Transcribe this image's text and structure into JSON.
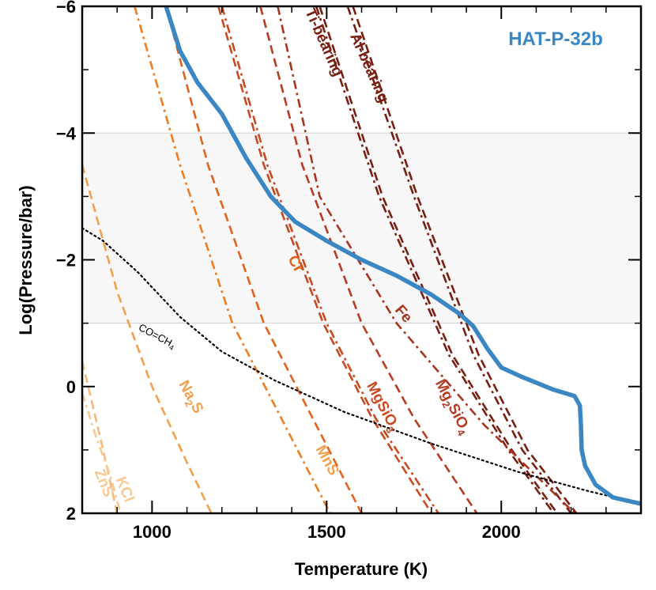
{
  "chart_data": {
    "type": "line",
    "title": "HAT-P-32b",
    "title_color": "#3b87c4",
    "xlabel": "Temperature (K)",
    "ylabel": "Log(Pressure/bar)",
    "xlim": [
      800,
      2400
    ],
    "ylim": [
      -6,
      2
    ],
    "x_ticks": [
      1000,
      1500,
      2000
    ],
    "x_tick_labels": [
      "1000",
      "1500",
      "2000"
    ],
    "y_ticks": [
      -6,
      -4,
      -2,
      0,
      2
    ],
    "y_tick_labels": [
      "−6",
      "−4",
      "−2",
      "0",
      "2"
    ],
    "grid": false,
    "shaded_band": {
      "y_from": -4.0,
      "y_to": -1.0,
      "color": "#f7f7f7"
    },
    "profile": {
      "color": "#3b87c4",
      "points": [
        [
          1040,
          -6.0
        ],
        [
          1080,
          -5.3
        ],
        [
          1130,
          -4.8
        ],
        [
          1200,
          -4.3
        ],
        [
          1270,
          -3.6
        ],
        [
          1340,
          -3.0
        ],
        [
          1410,
          -2.6
        ],
        [
          1500,
          -2.3
        ],
        [
          1600,
          -2.0
        ],
        [
          1700,
          -1.75
        ],
        [
          1800,
          -1.45
        ],
        [
          1880,
          -1.15
        ],
        [
          1920,
          -0.95
        ],
        [
          1960,
          -0.6
        ],
        [
          2000,
          -0.3
        ],
        [
          2060,
          -0.15
        ],
        [
          2150,
          0.05
        ],
        [
          2210,
          0.15
        ],
        [
          2225,
          0.3
        ],
        [
          2228,
          0.6
        ],
        [
          2230,
          1.0
        ],
        [
          2240,
          1.25
        ],
        [
          2270,
          1.55
        ],
        [
          2320,
          1.75
        ],
        [
          2400,
          1.85
        ]
      ]
    },
    "co_ch4_boundary": {
      "label": "CO=CH",
      "label_subscript": "4",
      "points": [
        [
          800,
          -2.5
        ],
        [
          860,
          -2.3
        ],
        [
          960,
          -1.8
        ],
        [
          1080,
          -1.1
        ],
        [
          1200,
          -0.55
        ],
        [
          1350,
          -0.1
        ],
        [
          1550,
          0.4
        ],
        [
          1800,
          0.9
        ],
        [
          2050,
          1.35
        ],
        [
          2250,
          1.65
        ],
        [
          2400,
          1.85
        ]
      ]
    },
    "condensation_curves": [
      {
        "name": "Ti-bearing",
        "color": "#781f12",
        "style": "dashdot",
        "points": [
          [
            1470,
            -6.0
          ],
          [
            1650,
            -3.0
          ],
          [
            1850,
            -0.5
          ],
          [
            2020,
            1.0
          ],
          [
            2150,
            2.0
          ]
        ]
      },
      {
        "name": "Ti-bearing",
        "color": "#781f12",
        "style": "dashed",
        "points": [
          [
            1480,
            -6.0
          ],
          [
            1660,
            -3.0
          ],
          [
            1860,
            -0.5
          ],
          [
            2030,
            1.0
          ],
          [
            2160,
            2.0
          ]
        ]
      },
      {
        "name": "Al-bearing",
        "color": "#781f12",
        "style": "dashdot",
        "points": [
          [
            1560,
            -6.0
          ],
          [
            1750,
            -3.0
          ],
          [
            1920,
            -0.5
          ],
          [
            2060,
            1.0
          ],
          [
            2200,
            2.0
          ]
        ]
      },
      {
        "name": "Al-bearing",
        "color": "#781f12",
        "style": "dashed",
        "points": [
          [
            1575,
            -6.0
          ],
          [
            1760,
            -3.0
          ],
          [
            1935,
            -0.5
          ],
          [
            2075,
            1.0
          ],
          [
            2215,
            2.0
          ]
        ]
      },
      {
        "name": "Fe",
        "color": "#a8331e",
        "style": "dashdot",
        "points": [
          [
            1360,
            -6.0
          ],
          [
            1480,
            -3.0
          ],
          [
            1700,
            -1.0
          ],
          [
            1950,
            0.6
          ],
          [
            2210,
            2.0
          ]
        ]
      },
      {
        "name": "Mg2SiO4",
        "color": "#b83a22",
        "style": "dashed",
        "points": [
          [
            1310,
            -6.0
          ],
          [
            1430,
            -3.5
          ],
          [
            1600,
            -1.0
          ],
          [
            1750,
            0.5
          ],
          [
            1930,
            2.0
          ]
        ]
      },
      {
        "name": "MgSiO3",
        "color": "#c94a20",
        "style": "dashdot",
        "points": [
          [
            1200,
            -6.0
          ],
          [
            1330,
            -3.5
          ],
          [
            1500,
            -1.0
          ],
          [
            1640,
            0.5
          ],
          [
            1820,
            2.0
          ]
        ]
      },
      {
        "name": "MgSiO3",
        "color": "#c94a20",
        "style": "dashed",
        "points": [
          [
            1190,
            -6.0
          ],
          [
            1320,
            -3.5
          ],
          [
            1490,
            -1.0
          ],
          [
            1630,
            0.5
          ],
          [
            1800,
            2.0
          ]
        ]
      },
      {
        "name": "Cr",
        "color": "#e2621b",
        "style": "dashed",
        "points": [
          [
            1040,
            -6.0
          ],
          [
            1160,
            -3.5
          ],
          [
            1320,
            -1.0
          ],
          [
            1460,
            0.5
          ],
          [
            1600,
            2.0
          ]
        ]
      },
      {
        "name": "MnS",
        "color": "#f07c1d",
        "style": "dashdot",
        "points": [
          [
            950,
            -6.0
          ],
          [
            1080,
            -3.5
          ],
          [
            1230,
            -1.0
          ],
          [
            1370,
            0.5
          ],
          [
            1510,
            2.0
          ]
        ]
      },
      {
        "name": "Na2S",
        "color": "#f4a04a",
        "style": "dashed",
        "points": [
          [
            800,
            -3.5
          ],
          [
            900,
            -1.5
          ],
          [
            1000,
            0.0
          ],
          [
            1100,
            1.2
          ],
          [
            1170,
            2.0
          ]
        ]
      },
      {
        "name": "ZnS",
        "color": "#f7b87a",
        "style": "dashed",
        "points": [
          [
            800,
            -0.4
          ],
          [
            830,
            0.3
          ],
          [
            860,
            1.0
          ],
          [
            880,
            1.5
          ],
          [
            900,
            2.0
          ]
        ]
      },
      {
        "name": "KCl",
        "color": "#f9c994",
        "style": "dashdot",
        "points": [
          [
            800,
            0.1
          ],
          [
            840,
            0.8
          ],
          [
            880,
            1.4
          ],
          [
            910,
            2.0
          ]
        ]
      }
    ],
    "curve_labels": [
      {
        "text": "Ti-bearing",
        "color": "#781f12"
      },
      {
        "text": "Al-bearing",
        "color": "#781f12"
      },
      {
        "text": "Fe",
        "color": "#a8331e"
      },
      {
        "text": "Mg",
        "sub": "2",
        "text2": "SiO",
        "sub2": "4",
        "color": "#b83a22"
      },
      {
        "text": "MgSiO",
        "sub": "3",
        "color": "#c94a20"
      },
      {
        "text": "Cr",
        "color": "#e2621b"
      },
      {
        "text": "MnS",
        "color": "#f4a04a"
      },
      {
        "text": "Na",
        "sub": "2",
        "text2": "S",
        "color": "#f4a04a"
      },
      {
        "text": "ZnS",
        "color": "#f9c994"
      },
      {
        "text": "KCl",
        "color": "#f9c994"
      }
    ]
  }
}
